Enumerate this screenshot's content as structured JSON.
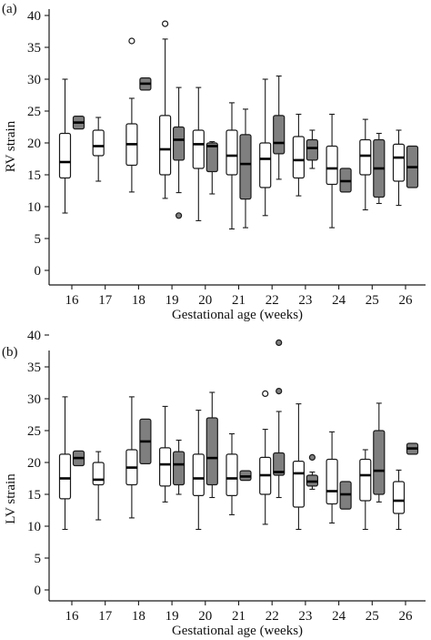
{
  "chart_data": [
    {
      "panel_label": "(a)",
      "type": "boxplot",
      "xlabel": "Gestational age (weeks)",
      "ylabel": "RV strain",
      "ylim": [
        0,
        40
      ],
      "yticks": [
        0,
        5,
        10,
        15,
        20,
        25,
        30,
        35,
        40
      ],
      "categories": [
        "16",
        "17",
        "18",
        "19",
        "20",
        "21",
        "22",
        "23",
        "24",
        "25",
        "26"
      ],
      "colors": {
        "group1": "#ffffff",
        "group2": "#7f7f7f"
      },
      "boxes": [
        {
          "week": "16",
          "group": 1,
          "min": 9,
          "q1": 14.5,
          "median": 17,
          "q3": 21.5,
          "max": 30,
          "outliers": []
        },
        {
          "week": "16",
          "group": 2,
          "min": 22.2,
          "q1": 22.2,
          "median": 23.2,
          "q3": 24.2,
          "max": 24.2,
          "outliers": []
        },
        {
          "week": "17",
          "group": 1,
          "min": 14,
          "q1": 18,
          "median": 19.5,
          "q3": 22,
          "max": 24,
          "outliers": []
        },
        {
          "week": "18",
          "group": 1,
          "min": 12.3,
          "q1": 16.5,
          "median": 19.8,
          "q3": 23,
          "max": 27,
          "outliers": [
            36
          ]
        },
        {
          "week": "18",
          "group": 2,
          "min": 28.3,
          "q1": 28.3,
          "median": 29.3,
          "q3": 30.2,
          "max": 30.2,
          "outliers": []
        },
        {
          "week": "19",
          "group": 1,
          "min": 11.3,
          "q1": 15,
          "median": 19,
          "q3": 24.3,
          "max": 36.3,
          "outliers": [
            38.7
          ]
        },
        {
          "week": "19",
          "group": 2,
          "min": 12.2,
          "q1": 17.3,
          "median": 20.5,
          "q3": 22.5,
          "max": 28.7,
          "outliers": [
            8.6
          ]
        },
        {
          "week": "20",
          "group": 1,
          "min": 7.8,
          "q1": 16,
          "median": 19.8,
          "q3": 22,
          "max": 28.7,
          "outliers": []
        },
        {
          "week": "20",
          "group": 2,
          "min": 12,
          "q1": 15.5,
          "median": 19.5,
          "q3": 20,
          "max": 20.2,
          "outliers": []
        },
        {
          "week": "21",
          "group": 1,
          "min": 6.5,
          "q1": 15,
          "median": 18,
          "q3": 22,
          "max": 26.3,
          "outliers": []
        },
        {
          "week": "21",
          "group": 2,
          "min": 6.7,
          "q1": 11.2,
          "median": 16.7,
          "q3": 21.3,
          "max": 25.3,
          "outliers": []
        },
        {
          "week": "22",
          "group": 1,
          "min": 8.6,
          "q1": 13,
          "median": 17.5,
          "q3": 20,
          "max": 30,
          "outliers": []
        },
        {
          "week": "22",
          "group": 2,
          "min": 14.3,
          "q1": 18.3,
          "median": 20,
          "q3": 24.3,
          "max": 30.5,
          "outliers": []
        },
        {
          "week": "23",
          "group": 1,
          "min": 11.7,
          "q1": 14.5,
          "median": 17.3,
          "q3": 21,
          "max": 24.5,
          "outliers": []
        },
        {
          "week": "23",
          "group": 2,
          "min": 16,
          "q1": 17.3,
          "median": 19.2,
          "q3": 20.5,
          "max": 22,
          "outliers": []
        },
        {
          "week": "24",
          "group": 1,
          "min": 6.7,
          "q1": 13.5,
          "median": 16,
          "q3": 19.5,
          "max": 24.5,
          "outliers": []
        },
        {
          "week": "24",
          "group": 2,
          "min": 12.3,
          "q1": 12.3,
          "median": 14,
          "q3": 16,
          "max": 16,
          "outliers": []
        },
        {
          "week": "25",
          "group": 1,
          "min": 9.5,
          "q1": 15,
          "median": 18,
          "q3": 20.5,
          "max": 23.7,
          "outliers": []
        },
        {
          "week": "25",
          "group": 2,
          "min": 10.5,
          "q1": 11.5,
          "median": 16,
          "q3": 20.5,
          "max": 21.5,
          "outliers": []
        },
        {
          "week": "26",
          "group": 1,
          "min": 10.2,
          "q1": 14,
          "median": 17.7,
          "q3": 19.8,
          "max": 22,
          "outliers": []
        },
        {
          "week": "26",
          "group": 2,
          "min": 13,
          "q1": 13,
          "median": 16.2,
          "q3": 19.5,
          "max": 19.5,
          "outliers": []
        }
      ]
    },
    {
      "panel_label": "(b)",
      "type": "boxplot",
      "xlabel": "Gestational age (weeks)",
      "ylabel": "LV strain",
      "ylim": [
        0,
        40
      ],
      "yticks": [
        0,
        5,
        10,
        15,
        20,
        25,
        30,
        35,
        40
      ],
      "categories": [
        "16",
        "17",
        "18",
        "19",
        "20",
        "21",
        "22",
        "23",
        "24",
        "25",
        "26"
      ],
      "colors": {
        "group1": "#ffffff",
        "group2": "#7f7f7f"
      },
      "boxes": [
        {
          "week": "16",
          "group": 1,
          "min": 9.5,
          "q1": 14.3,
          "median": 17.5,
          "q3": 21.3,
          "max": 30.3,
          "outliers": []
        },
        {
          "week": "16",
          "group": 2,
          "min": 19.5,
          "q1": 19.5,
          "median": 20.7,
          "q3": 21.8,
          "max": 21.8,
          "outliers": []
        },
        {
          "week": "17",
          "group": 1,
          "min": 11,
          "q1": 16.5,
          "median": 17.3,
          "q3": 20,
          "max": 21.7,
          "outliers": []
        },
        {
          "week": "18",
          "group": 1,
          "min": 11.3,
          "q1": 16.5,
          "median": 19.2,
          "q3": 22,
          "max": 30.3,
          "outliers": []
        },
        {
          "week": "18",
          "group": 2,
          "min": 19.8,
          "q1": 19.8,
          "median": 23.3,
          "q3": 26.8,
          "max": 26.8,
          "outliers": []
        },
        {
          "week": "19",
          "group": 1,
          "min": 13.8,
          "q1": 16.3,
          "median": 19.7,
          "q3": 22.3,
          "max": 28.8,
          "outliers": []
        },
        {
          "week": "19",
          "group": 2,
          "min": 15,
          "q1": 16.5,
          "median": 19.7,
          "q3": 21.7,
          "max": 23.5,
          "outliers": []
        },
        {
          "week": "20",
          "group": 1,
          "min": 9.5,
          "q1": 14.8,
          "median": 17.5,
          "q3": 21.3,
          "max": 28.2,
          "outliers": []
        },
        {
          "week": "20",
          "group": 2,
          "min": 14.5,
          "q1": 16.5,
          "median": 20.7,
          "q3": 27,
          "max": 31,
          "outliers": []
        },
        {
          "week": "21",
          "group": 1,
          "min": 11.8,
          "q1": 14.8,
          "median": 17.5,
          "q3": 21.3,
          "max": 24.5,
          "outliers": []
        },
        {
          "week": "21",
          "group": 2,
          "min": 17.2,
          "q1": 17.2,
          "median": 17.8,
          "q3": 18.7,
          "max": 18.7,
          "outliers": []
        },
        {
          "week": "22",
          "group": 1,
          "min": 10.3,
          "q1": 15,
          "median": 18,
          "q3": 20.8,
          "max": 25.2,
          "outliers": [
            30.8
          ]
        },
        {
          "week": "22",
          "group": 2,
          "min": 14.5,
          "q1": 18,
          "median": 18.5,
          "q3": 21.5,
          "max": 28,
          "outliers": [
            31.2,
            38.8
          ]
        },
        {
          "week": "23",
          "group": 1,
          "min": 9.5,
          "q1": 13,
          "median": 18.3,
          "q3": 20.2,
          "max": 29.2,
          "outliers": []
        },
        {
          "week": "23",
          "group": 2,
          "min": 15.8,
          "q1": 16.3,
          "median": 17,
          "q3": 18,
          "max": 18.5,
          "outliers": [
            20.8
          ]
        },
        {
          "week": "24",
          "group": 1,
          "min": 10.5,
          "q1": 13.5,
          "median": 15.5,
          "q3": 20.5,
          "max": 24.8,
          "outliers": []
        },
        {
          "week": "24",
          "group": 2,
          "min": 12.7,
          "q1": 12.7,
          "median": 15,
          "q3": 17,
          "max": 17,
          "outliers": []
        },
        {
          "week": "25",
          "group": 1,
          "min": 9.5,
          "q1": 14,
          "median": 18,
          "q3": 20.5,
          "max": 22,
          "outliers": []
        },
        {
          "week": "25",
          "group": 2,
          "min": 13.8,
          "q1": 15,
          "median": 18.7,
          "q3": 25,
          "max": 29.3,
          "outliers": []
        },
        {
          "week": "26",
          "group": 1,
          "min": 9.5,
          "q1": 12,
          "median": 14,
          "q3": 17,
          "max": 18.8,
          "outliers": []
        },
        {
          "week": "26",
          "group": 2,
          "min": 21.3,
          "q1": 21.3,
          "median": 22.2,
          "q3": 23,
          "max": 23,
          "outliers": []
        }
      ]
    }
  ]
}
